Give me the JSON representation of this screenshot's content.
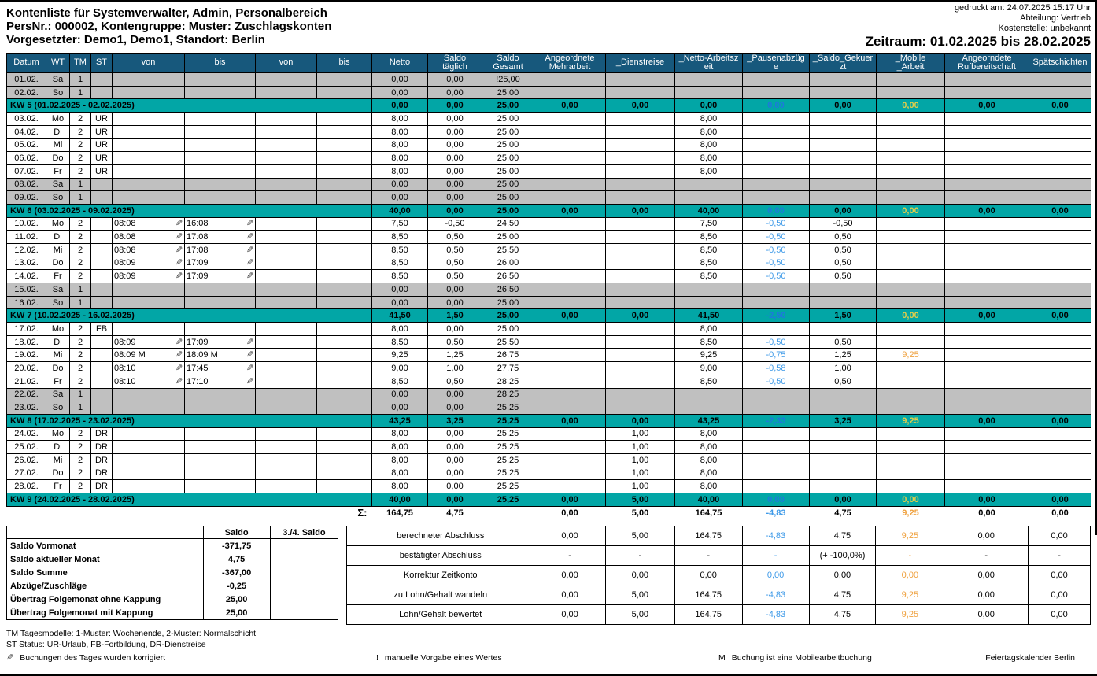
{
  "header": {
    "title": "Kontenliste für Systemverwalter, Admin, Personalbereich",
    "subtitle1": "PersNr.: 000002, Kontengruppe: Muster: Zuschlagskonten",
    "subtitle2": "Vorgesetzter: Demo1, Demo1, Standort: Berlin",
    "printed": "gedruckt am: 24.07.2025 15:17 Uhr",
    "department": "Abteilung: Vertrieb",
    "cost_center": "Kostenstelle: unbekannt",
    "period": "Zeitraum: 01.02.2025 bis 28.02.2025"
  },
  "colors": {
    "header_bg": "#17587C",
    "week_row_bg": "#02A6A6",
    "weekend_bg": "#C0C0C0",
    "value_blue": "#3E9AE8",
    "value_orange": "#EFA03C",
    "value_yellow_on_teal": "#E3CE4A"
  },
  "icons": {
    "pencil": "✎"
  },
  "table": {
    "columns": [
      "Datum",
      "WT",
      "TM",
      "ST",
      "von",
      "bis",
      "von",
      "bis",
      "Netto",
      "Saldo\ntäglich",
      "Saldo\nGesamt",
      "Angeordnete\nMehrarbeit",
      "_Dienstreise",
      "_Netto-Arbeitsz\neit",
      "_Pausenabzüg\ne",
      "_Saldo_Gekuer\nzt",
      "_Mobile\n_Arbeit",
      "Angeorndete\nRufbereitschaft",
      "Spätschichten"
    ],
    "rows": [
      {
        "type": "day",
        "weekend": true,
        "dt": "01.02.",
        "wt": "Sa",
        "tm": "1",
        "st": "",
        "v1": "",
        "b1": "",
        "n": "0,00",
        "sd": "0,00",
        "sg": "!25,00",
        "ma": "",
        "di": "",
        "na": "",
        "pa": "",
        "sk": "",
        "mo": "",
        "rb": "",
        "sp": ""
      },
      {
        "type": "day",
        "weekend": true,
        "dt": "02.02.",
        "wt": "So",
        "tm": "1",
        "st": "",
        "v1": "",
        "b1": "",
        "n": "0,00",
        "sd": "0,00",
        "sg": "25,00",
        "ma": "",
        "di": "",
        "na": "",
        "pa": "",
        "sk": "",
        "mo": "",
        "rb": "",
        "sp": ""
      },
      {
        "type": "week",
        "label": "KW 5 (01.02.2025 - 02.02.2025)",
        "n": "0,00",
        "sd": "0,00",
        "sg": "25,00",
        "ma": "0,00",
        "di": "0,00",
        "na": "0,00",
        "pa": "0,00",
        "sk": "0,00",
        "mo": "0,00",
        "rb": "0,00",
        "sp": "0,00"
      },
      {
        "type": "day",
        "weekend": false,
        "dt": "03.02.",
        "wt": "Mo",
        "tm": "2",
        "st": "UR",
        "v1": "",
        "b1": "",
        "n": "8,00",
        "sd": "0,00",
        "sg": "25,00",
        "ma": "",
        "di": "",
        "na": "8,00",
        "pa": "",
        "sk": "",
        "mo": "",
        "rb": "",
        "sp": ""
      },
      {
        "type": "day",
        "weekend": false,
        "dt": "04.02.",
        "wt": "Di",
        "tm": "2",
        "st": "UR",
        "v1": "",
        "b1": "",
        "n": "8,00",
        "sd": "0,00",
        "sg": "25,00",
        "ma": "",
        "di": "",
        "na": "8,00",
        "pa": "",
        "sk": "",
        "mo": "",
        "rb": "",
        "sp": ""
      },
      {
        "type": "day",
        "weekend": false,
        "dt": "05.02.",
        "wt": "Mi",
        "tm": "2",
        "st": "UR",
        "v1": "",
        "b1": "",
        "n": "8,00",
        "sd": "0,00",
        "sg": "25,00",
        "ma": "",
        "di": "",
        "na": "8,00",
        "pa": "",
        "sk": "",
        "mo": "",
        "rb": "",
        "sp": ""
      },
      {
        "type": "day",
        "weekend": false,
        "dt": "06.02.",
        "wt": "Do",
        "tm": "2",
        "st": "UR",
        "v1": "",
        "b1": "",
        "n": "8,00",
        "sd": "0,00",
        "sg": "25,00",
        "ma": "",
        "di": "",
        "na": "8,00",
        "pa": "",
        "sk": "",
        "mo": "",
        "rb": "",
        "sp": ""
      },
      {
        "type": "day",
        "weekend": false,
        "dt": "07.02.",
        "wt": "Fr",
        "tm": "2",
        "st": "UR",
        "v1": "",
        "b1": "",
        "n": "8,00",
        "sd": "0,00",
        "sg": "25,00",
        "ma": "",
        "di": "",
        "na": "8,00",
        "pa": "",
        "sk": "",
        "mo": "",
        "rb": "",
        "sp": ""
      },
      {
        "type": "day",
        "weekend": true,
        "dt": "08.02.",
        "wt": "Sa",
        "tm": "1",
        "st": "",
        "v1": "",
        "b1": "",
        "n": "0,00",
        "sd": "0,00",
        "sg": "25,00",
        "ma": "",
        "di": "",
        "na": "",
        "pa": "",
        "sk": "",
        "mo": "",
        "rb": "",
        "sp": ""
      },
      {
        "type": "day",
        "weekend": true,
        "dt": "09.02.",
        "wt": "So",
        "tm": "1",
        "st": "",
        "v1": "",
        "b1": "",
        "n": "0,00",
        "sd": "0,00",
        "sg": "25,00",
        "ma": "",
        "di": "",
        "na": "",
        "pa": "",
        "sk": "",
        "mo": "",
        "rb": "",
        "sp": ""
      },
      {
        "type": "week",
        "label": "KW 6 (03.02.2025 - 09.02.2025)",
        "n": "40,00",
        "sd": "0,00",
        "sg": "25,00",
        "ma": "0,00",
        "di": "0,00",
        "na": "40,00",
        "pa": "0,00",
        "sk": "0,00",
        "mo": "0,00",
        "rb": "0,00",
        "sp": "0,00"
      },
      {
        "type": "day",
        "weekend": false,
        "dt": "10.02.",
        "wt": "Mo",
        "tm": "2",
        "st": "",
        "v1": "08:08",
        "b1": "16:08",
        "n": "7,50",
        "sd": "-0,50",
        "sg": "24,50",
        "ma": "",
        "di": "",
        "na": "7,50",
        "pa": "-0,50",
        "sk": "-0,50",
        "mo": "",
        "rb": "",
        "sp": ""
      },
      {
        "type": "day",
        "weekend": false,
        "dt": "11.02.",
        "wt": "Di",
        "tm": "2",
        "st": "",
        "v1": "08:08",
        "b1": "17:08",
        "n": "8,50",
        "sd": "0,50",
        "sg": "25,00",
        "ma": "",
        "di": "",
        "na": "8,50",
        "pa": "-0,50",
        "sk": "0,50",
        "mo": "",
        "rb": "",
        "sp": ""
      },
      {
        "type": "day",
        "weekend": false,
        "dt": "12.02.",
        "wt": "Mi",
        "tm": "2",
        "st": "",
        "v1": "08:08",
        "b1": "17:08",
        "n": "8,50",
        "sd": "0,50",
        "sg": "25,50",
        "ma": "",
        "di": "",
        "na": "8,50",
        "pa": "-0,50",
        "sk": "0,50",
        "mo": "",
        "rb": "",
        "sp": ""
      },
      {
        "type": "day",
        "weekend": false,
        "dt": "13.02.",
        "wt": "Do",
        "tm": "2",
        "st": "",
        "v1": "08:09",
        "b1": "17:09",
        "n": "8,50",
        "sd": "0,50",
        "sg": "26,00",
        "ma": "",
        "di": "",
        "na": "8,50",
        "pa": "-0,50",
        "sk": "0,50",
        "mo": "",
        "rb": "",
        "sp": ""
      },
      {
        "type": "day",
        "weekend": false,
        "dt": "14.02.",
        "wt": "Fr",
        "tm": "2",
        "st": "",
        "v1": "08:09",
        "b1": "17:09",
        "n": "8,50",
        "sd": "0,50",
        "sg": "26,50",
        "ma": "",
        "di": "",
        "na": "8,50",
        "pa": "-0,50",
        "sk": "0,50",
        "mo": "",
        "rb": "",
        "sp": ""
      },
      {
        "type": "day",
        "weekend": true,
        "dt": "15.02.",
        "wt": "Sa",
        "tm": "1",
        "st": "",
        "v1": "",
        "b1": "",
        "n": "0,00",
        "sd": "0,00",
        "sg": "26,50",
        "ma": "",
        "di": "",
        "na": "",
        "pa": "",
        "sk": "",
        "mo": "",
        "rb": "",
        "sp": ""
      },
      {
        "type": "day",
        "weekend": true,
        "dt": "16.02.",
        "wt": "So",
        "tm": "1",
        "st": "",
        "v1": "",
        "b1": "",
        "n": "0,00",
        "sd": "0,00",
        "sg": "25,00",
        "ma": "",
        "di": "",
        "na": "",
        "pa": "",
        "sk": "",
        "mo": "",
        "rb": "",
        "sp": ""
      },
      {
        "type": "week",
        "label": "KW 7 (10.02.2025 - 16.02.2025)",
        "n": "41,50",
        "sd": "1,50",
        "sg": "25,00",
        "ma": "0,00",
        "di": "0,00",
        "na": "41,50",
        "pa": "-2,50",
        "sk": "1,50",
        "mo": "0,00",
        "rb": "0,00",
        "sp": "0,00"
      },
      {
        "type": "day",
        "weekend": false,
        "dt": "17.02.",
        "wt": "Mo",
        "tm": "2",
        "st": "FB",
        "v1": "",
        "b1": "",
        "n": "8,00",
        "sd": "0,00",
        "sg": "25,00",
        "ma": "",
        "di": "",
        "na": "8,00",
        "pa": "",
        "sk": "",
        "mo": "",
        "rb": "",
        "sp": ""
      },
      {
        "type": "day",
        "weekend": false,
        "dt": "18.02.",
        "wt": "Di",
        "tm": "2",
        "st": "",
        "v1": "08:09",
        "b1": "17:09",
        "n": "8,50",
        "sd": "0,50",
        "sg": "25,50",
        "ma": "",
        "di": "",
        "na": "8,50",
        "pa": "-0,50",
        "sk": "0,50",
        "mo": "",
        "rb": "",
        "sp": ""
      },
      {
        "type": "day",
        "weekend": false,
        "dt": "19.02.",
        "wt": "Mi",
        "tm": "2",
        "st": "",
        "v1": "08:09 M",
        "b1": "18:09 M",
        "n": "9,25",
        "sd": "1,25",
        "sg": "26,75",
        "ma": "",
        "di": "",
        "na": "9,25",
        "pa": "-0,75",
        "sk": "1,25",
        "mo": "9,25",
        "rb": "",
        "sp": ""
      },
      {
        "type": "day",
        "weekend": false,
        "dt": "20.02.",
        "wt": "Do",
        "tm": "2",
        "st": "",
        "v1": "08:10",
        "b1": "17:45",
        "n": "9,00",
        "sd": "1,00",
        "sg": "27,75",
        "ma": "",
        "di": "",
        "na": "9,00",
        "pa": "-0,58",
        "sk": "1,00",
        "mo": "",
        "rb": "",
        "sp": ""
      },
      {
        "type": "day",
        "weekend": false,
        "dt": "21.02.",
        "wt": "Fr",
        "tm": "2",
        "st": "",
        "v1": "08:10",
        "b1": "17:10",
        "n": "8,50",
        "sd": "0,50",
        "sg": "28,25",
        "ma": "",
        "di": "",
        "na": "8,50",
        "pa": "-0,50",
        "sk": "0,50",
        "mo": "",
        "rb": "",
        "sp": ""
      },
      {
        "type": "day",
        "weekend": true,
        "dt": "22.02.",
        "wt": "Sa",
        "tm": "1",
        "st": "",
        "v1": "",
        "b1": "",
        "n": "0,00",
        "sd": "0,00",
        "sg": "28,25",
        "ma": "",
        "di": "",
        "na": "",
        "pa": "",
        "sk": "",
        "mo": "",
        "rb": "",
        "sp": ""
      },
      {
        "type": "day",
        "weekend": true,
        "dt": "23.02.",
        "wt": "So",
        "tm": "1",
        "st": "",
        "v1": "",
        "b1": "",
        "n": "0,00",
        "sd": "0,00",
        "sg": "25,25",
        "ma": "",
        "di": "",
        "na": "",
        "pa": "",
        "sk": "",
        "mo": "",
        "rb": "",
        "sp": ""
      },
      {
        "type": "week",
        "label": "KW 8 (17.02.2025 - 23.02.2025)",
        "n": "43,25",
        "sd": "3,25",
        "sg": "25,25",
        "ma": "0,00",
        "di": "0,00",
        "na": "43,25",
        "pa": "-2,33",
        "sk": "3,25",
        "mo": "9,25",
        "rb": "0,00",
        "sp": "0,00"
      },
      {
        "type": "day",
        "weekend": false,
        "dt": "24.02.",
        "wt": "Mo",
        "tm": "2",
        "st": "DR",
        "v1": "",
        "b1": "",
        "n": "8,00",
        "sd": "0,00",
        "sg": "25,25",
        "ma": "",
        "di": "1,00",
        "na": "8,00",
        "pa": "",
        "sk": "",
        "mo": "",
        "rb": "",
        "sp": ""
      },
      {
        "type": "day",
        "weekend": false,
        "dt": "25.02.",
        "wt": "Di",
        "tm": "2",
        "st": "DR",
        "v1": "",
        "b1": "",
        "n": "8,00",
        "sd": "0,00",
        "sg": "25,25",
        "ma": "",
        "di": "1,00",
        "na": "8,00",
        "pa": "",
        "sk": "",
        "mo": "",
        "rb": "",
        "sp": ""
      },
      {
        "type": "day",
        "weekend": false,
        "dt": "26.02.",
        "wt": "Mi",
        "tm": "2",
        "st": "DR",
        "v1": "",
        "b1": "",
        "n": "8,00",
        "sd": "0,00",
        "sg": "25,25",
        "ma": "",
        "di": "1,00",
        "na": "8,00",
        "pa": "",
        "sk": "",
        "mo": "",
        "rb": "",
        "sp": ""
      },
      {
        "type": "day",
        "weekend": false,
        "dt": "27.02.",
        "wt": "Do",
        "tm": "2",
        "st": "DR",
        "v1": "",
        "b1": "",
        "n": "8,00",
        "sd": "0,00",
        "sg": "25,25",
        "ma": "",
        "di": "1,00",
        "na": "8,00",
        "pa": "",
        "sk": "",
        "mo": "",
        "rb": "",
        "sp": ""
      },
      {
        "type": "day",
        "weekend": false,
        "dt": "28.02.",
        "wt": "Fr",
        "tm": "2",
        "st": "DR",
        "v1": "",
        "b1": "",
        "n": "8,00",
        "sd": "0,00",
        "sg": "25,25",
        "ma": "",
        "di": "1,00",
        "na": "8,00",
        "pa": "",
        "sk": "",
        "mo": "",
        "rb": "",
        "sp": ""
      },
      {
        "type": "week",
        "label": "KW 9 (24.02.2025 - 28.02.2025)",
        "n": "40,00",
        "sd": "0,00",
        "sg": "25,25",
        "ma": "0,00",
        "di": "5,00",
        "na": "40,00",
        "pa": "0,00",
        "sk": "0,00",
        "mo": "0,00",
        "rb": "0,00",
        "sp": "0,00"
      }
    ],
    "sum": {
      "sigma": "Σ:",
      "n": "164,75",
      "sd": "4,75",
      "sg": "",
      "ma": "0,00",
      "di": "5,00",
      "na": "164,75",
      "pa": "-4,83",
      "sk": "4,75",
      "mo": "9,25",
      "rb": "0,00",
      "sp": "0,00"
    }
  },
  "saldo_summary": {
    "col_headers": [
      "Saldo",
      "3./4. Saldo"
    ],
    "rows": [
      {
        "label": "Saldo Vormonat",
        "saldo": "-371,75",
        "saldo34": ""
      },
      {
        "label": "Saldo aktueller Monat",
        "saldo": "4,75",
        "saldo34": ""
      },
      {
        "label": "Saldo Summe",
        "saldo": "-367,00",
        "saldo34": ""
      },
      {
        "label": "Abzüge/Zuschläge",
        "saldo": "-0,25",
        "saldo34": ""
      },
      {
        "label": "Übertrag Folgemonat ohne Kappung",
        "saldo": "25,00",
        "saldo34": ""
      },
      {
        "label": "Übertrag Folgemonat mit Kappung",
        "saldo": "25,00",
        "saldo34": ""
      }
    ]
  },
  "abschluss": {
    "rows": [
      {
        "label": "berechneter Abschluss",
        "values": [
          "0,00",
          "5,00",
          "164,75",
          "-4,83",
          "4,75",
          "9,25",
          "0,00",
          "0,00"
        ]
      },
      {
        "label": "bestätigter Abschluss",
        "values": [
          "-",
          "-",
          "-",
          "-",
          "(+ -100,0%)",
          "-",
          "-",
          "-"
        ]
      },
      {
        "label": "Korrektur Zeitkonto",
        "values": [
          "0,00",
          "0,00",
          "0,00",
          "0,00",
          "0,00",
          "0,00",
          "0,00",
          "0,00"
        ]
      },
      {
        "label": "zu Lohn/Gehalt wandeln",
        "values": [
          "0,00",
          "5,00",
          "164,75",
          "-4,83",
          "4,75",
          "9,25",
          "0,00",
          "0,00"
        ]
      },
      {
        "label": "Lohn/Gehalt bewertet",
        "values": [
          "0,00",
          "5,00",
          "164,75",
          "-4,83",
          "4,75",
          "9,25",
          "0,00",
          "0,00"
        ]
      }
    ]
  },
  "footer": {
    "tm_legend": "TM Tagesmodelle: 1-Muster: Wochenende, 2-Muster: Normalschicht",
    "st_legend": "ST Status: UR-Urlaub, FB-Fortbildung, DR-Dienstreise",
    "pencil_legend": "Buchungen des Tages wurden korrigiert",
    "excl_symbol": "!",
    "excl_legend": "manuelle Vorgabe eines Wertes",
    "m_symbol": "M",
    "m_legend": "Buchung ist eine Mobilearbeitbuchung",
    "calendar": "Feiertagskalender Berlin"
  }
}
